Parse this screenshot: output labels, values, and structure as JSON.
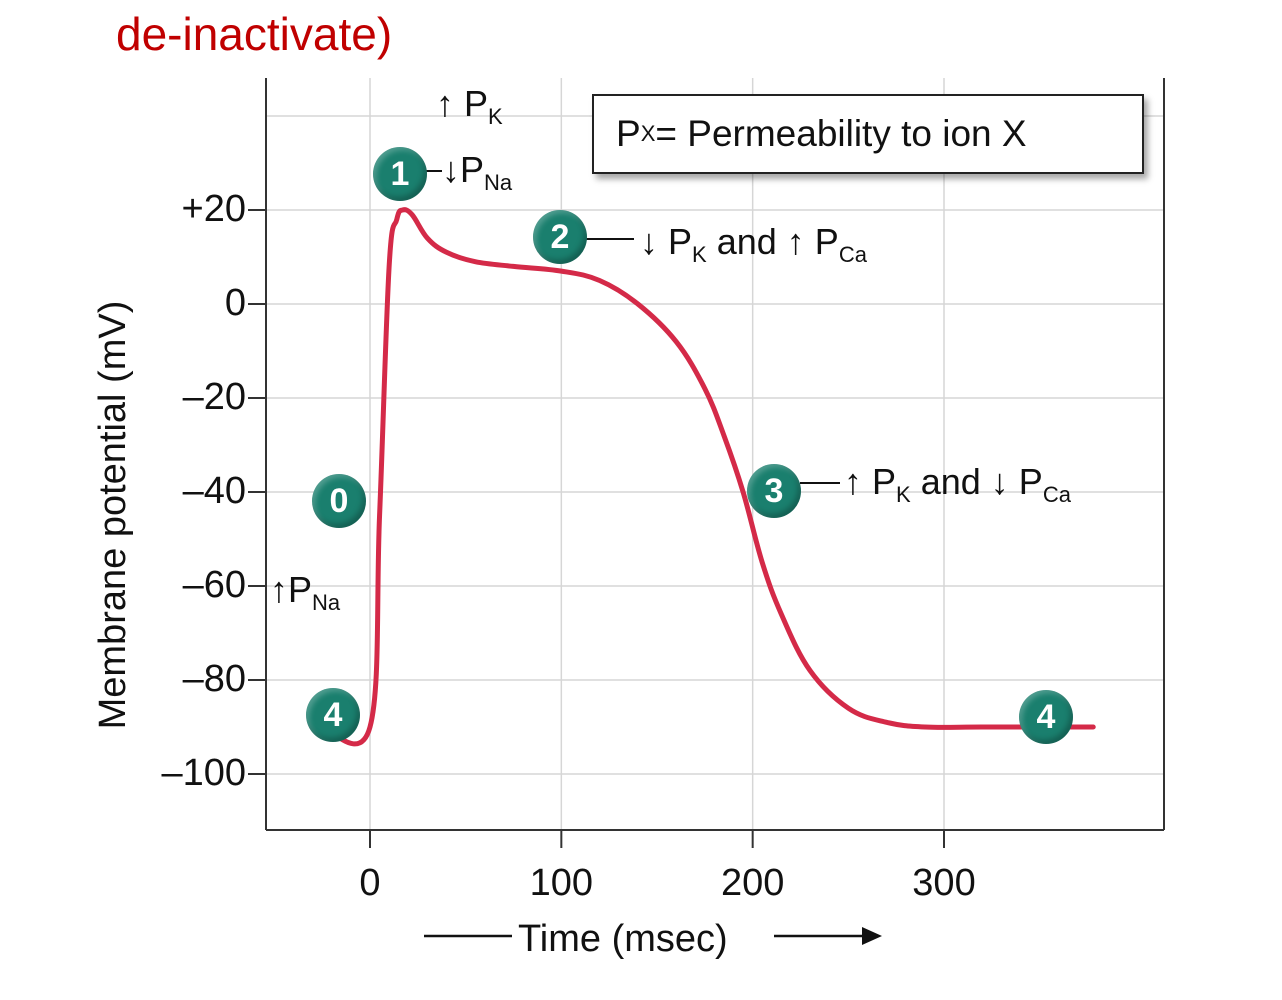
{
  "heading": "de-inactivate)",
  "legend": {
    "p": "P",
    "sub": "X",
    "text": " = Permeability to ion X"
  },
  "annotations": {
    "phase1_top": {
      "arrow": "↑ ",
      "p": "P",
      "sub": "K"
    },
    "phase1": {
      "arrow": "↓",
      "p": "P",
      "sub": "Na"
    },
    "phase2": {
      "arrow1": "↓ ",
      "p1": "P",
      "sub1": "K",
      "mid": " and ↑ ",
      "p2": "P",
      "sub2": "Ca"
    },
    "phase3": {
      "arrow1": "↑ ",
      "p1": "P",
      "sub1": "K",
      "mid": " and ↓ ",
      "p2": "P",
      "sub2": "Ca"
    },
    "phase0": {
      "arrow": "↑",
      "p": "P",
      "sub": "Na"
    }
  },
  "badges": [
    "1",
    "2",
    "3",
    "0",
    "4",
    "4"
  ],
  "chart_data": {
    "type": "line",
    "xlabel": "Time (msec)",
    "ylabel": "Membrane potential (mV)",
    "xlim": [
      -50,
      400
    ],
    "ylim": [
      -105,
      45
    ],
    "x_ticks": [
      0,
      100,
      200,
      300
    ],
    "x_tick_labels": [
      "0",
      "100",
      "200",
      "300"
    ],
    "y_ticks": [
      20,
      0,
      -20,
      -40,
      -60,
      -80,
      -100
    ],
    "y_tick_labels": [
      "+20",
      "0",
      "–20",
      "–40",
      "–60",
      "–80",
      "–100"
    ],
    "grid": true,
    "color": "#d42a48",
    "series": [
      {
        "x": [
          -25,
          0,
          5,
          10,
          14,
          17,
          22,
          30,
          40,
          55,
          75,
          100,
          120,
          140,
          160,
          175,
          185,
          195,
          205,
          215,
          230,
          250,
          270,
          290,
          320,
          360,
          378
        ],
        "y": [
          -90,
          -90,
          -45,
          8,
          18,
          20,
          19,
          14,
          11,
          9,
          8,
          7,
          5,
          0,
          -8,
          -18,
          -28,
          -40,
          -55,
          -66,
          -78,
          -86,
          -89,
          -90,
          -90,
          -90,
          -90
        ]
      }
    ]
  }
}
